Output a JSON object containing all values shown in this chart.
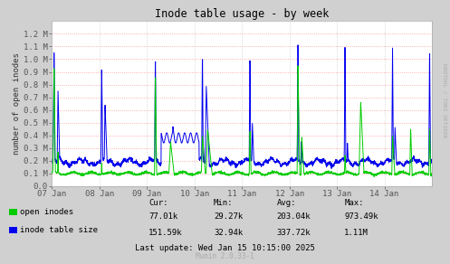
{
  "title": "Inode table usage - by week",
  "ylabel": "number of open inodes",
  "right_label": "RRDTOOL / TOBI OETIKER",
  "ylim": [
    0,
    1300000.0
  ],
  "yticks": [
    0.0,
    100000.0,
    200000.0,
    300000.0,
    400000.0,
    500000.0,
    600000.0,
    700000.0,
    800000.0,
    900000.0,
    1000000.0,
    1100000.0,
    1200000.0
  ],
  "ytick_labels": [
    "0.0",
    "0.1 M",
    "0.2 M",
    "0.3 M",
    "0.4 M",
    "0.5 M",
    "0.6 M",
    "0.7 M",
    "0.8 M",
    "0.9 M",
    "1.0 M",
    "1.1 M",
    "1.2 M"
  ],
  "xtick_labels": [
    "07 Jan",
    "08 Jan",
    "09 Jan",
    "10 Jan",
    "11 Jan",
    "12 Jan",
    "13 Jan",
    "14 Jan"
  ],
  "background_color": "#d0d0d0",
  "plot_bg_color": "#ffffff",
  "grid_color_h": "#ff9999",
  "grid_color_v": "#cccccc",
  "green_color": "#00cc00",
  "blue_color": "#0000ee",
  "blue_fill_color": "#aaaaff",
  "title_color": "#000000",
  "legend_green_label": "open inodes",
  "legend_blue_label": "inode table size",
  "stats_headers": [
    "Cur:",
    "Min:",
    "Avg:",
    "Max:"
  ],
  "stats_open": [
    "77.01k",
    "29.27k",
    "203.04k",
    "973.49k"
  ],
  "stats_table": [
    "151.59k",
    "32.94k",
    "337.72k",
    "1.11M"
  ],
  "last_update": "Last update: Wed Jan 15 10:15:00 2025",
  "munin_version": "Munin 2.0.33-1"
}
